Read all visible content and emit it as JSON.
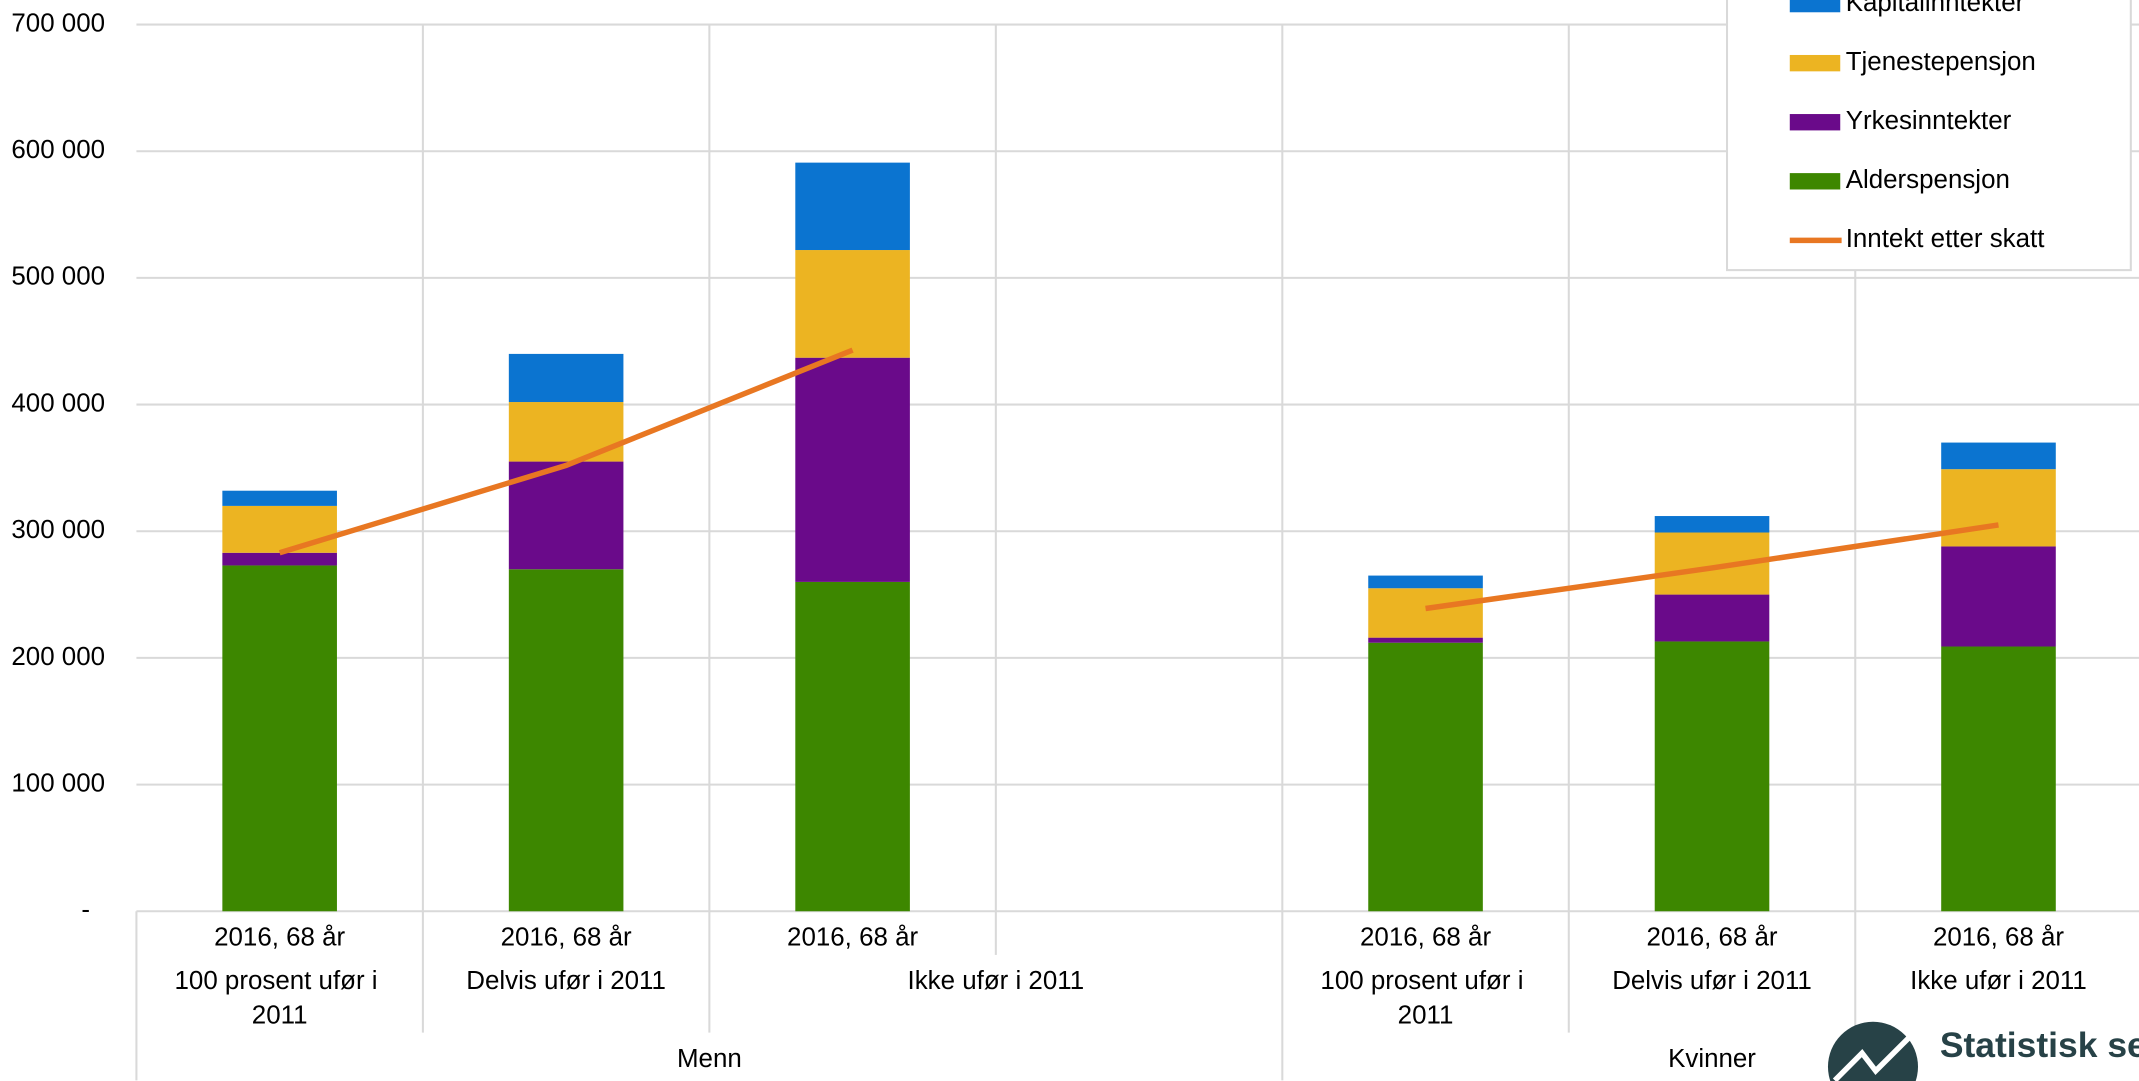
{
  "chart_data": {
    "type": "bar",
    "stacked": true,
    "categories": [
      "2016, 68 år",
      "2016, 68 år",
      "2016, 68 år",
      null,
      "2016, 68 år",
      "2016, 68 år",
      "2016, 68 år"
    ],
    "subgroups": [
      {
        "label": "100 prosent ufør i 2011",
        "count": 1
      },
      {
        "label": "Delvis ufør i 2011",
        "count": 1
      },
      {
        "label": "Ikke ufør i 2011",
        "count": 2
      },
      {
        "label": "100 prosent ufør i 2011",
        "count": 1
      },
      {
        "label": "Delvis ufør i 2011",
        "count": 1
      },
      {
        "label": "Ikke ufør i 2011",
        "count": 1
      }
    ],
    "groups": [
      {
        "label": "Menn",
        "count": 4
      },
      {
        "label": "Kvinner",
        "count": 3
      }
    ],
    "series": [
      {
        "name": "Alderspensjon",
        "color": "#3d8700",
        "values": [
          273000,
          270000,
          260000,
          null,
          212000,
          213000,
          209000
        ]
      },
      {
        "name": "Yrkesinntekter",
        "color": "#6a0a8a",
        "values": [
          10000,
          85000,
          177000,
          null,
          4000,
          37000,
          79000
        ]
      },
      {
        "name": "Tjenestepensjon",
        "color": "#ecb422",
        "values": [
          37000,
          47000,
          85000,
          null,
          39000,
          49000,
          61000
        ]
      },
      {
        "name": "Kapitalinntekter",
        "color": "#0b74d0",
        "values": [
          12000,
          38000,
          69000,
          null,
          10000,
          13000,
          21000
        ]
      },
      {
        "name": "Inntekt etter skatt",
        "color": "#e87722",
        "type": "line",
        "values": [
          283000,
          352000,
          443000,
          null,
          239000,
          271000,
          305000
        ]
      }
    ],
    "ylim": [
      0,
      700000
    ],
    "yticks": [
      {
        "value": 0,
        "label": "-"
      },
      {
        "value": 100000,
        "label": "100 000"
      },
      {
        "value": 200000,
        "label": "200 000"
      },
      {
        "value": 300000,
        "label": "300 000"
      },
      {
        "value": 400000,
        "label": "400 000"
      },
      {
        "value": 500000,
        "label": "500 000"
      },
      {
        "value": 600000,
        "label": "600 000"
      },
      {
        "value": 700000,
        "label": "700 000"
      }
    ],
    "grid": true,
    "legend": "top-right",
    "logo_text": "Statistisk sentralbyrå"
  }
}
